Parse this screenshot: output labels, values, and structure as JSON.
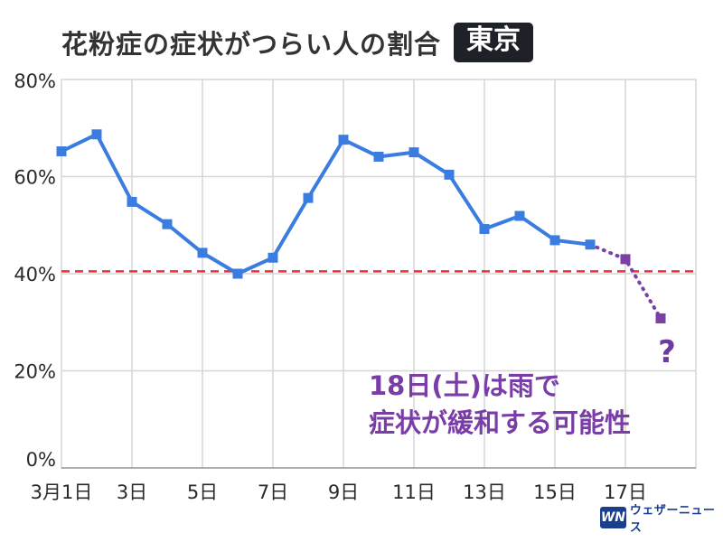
{
  "header": {
    "title": "花粉症の症状がつらい人の割合",
    "region": "東京"
  },
  "logo": {
    "mark": "WN",
    "text": "ウェザーニュース"
  },
  "colors": {
    "series": "#3a7ce0",
    "forecast": "#7b3fa6",
    "reference_line": "#e8313c",
    "grid": "#d6d6d6",
    "annotation": "#7a3da8"
  },
  "chart_data": {
    "type": "line",
    "title": "花粉症の症状がつらい人の割合",
    "xlabel": "",
    "ylabel": "",
    "ylim": [
      0,
      80
    ],
    "xlim": [
      1,
      19
    ],
    "grid": true,
    "y_ticks": [
      {
        "value": 0,
        "label": "0%"
      },
      {
        "value": 20,
        "label": "20%"
      },
      {
        "value": 40,
        "label": "40%"
      },
      {
        "value": 60,
        "label": "60%"
      },
      {
        "value": 80,
        "label": "80%"
      }
    ],
    "x_ticks": [
      {
        "value": 1,
        "label": "3月1日"
      },
      {
        "value": 3,
        "label": "3日"
      },
      {
        "value": 5,
        "label": "5日"
      },
      {
        "value": 7,
        "label": "7日"
      },
      {
        "value": 9,
        "label": "9日"
      },
      {
        "value": 11,
        "label": "11日"
      },
      {
        "value": 13,
        "label": "13日"
      },
      {
        "value": 15,
        "label": "15日"
      },
      {
        "value": 17,
        "label": "17日"
      }
    ],
    "series": [
      {
        "style": "solid",
        "color": "#3a7ce0",
        "x": [
          1,
          2,
          3,
          4,
          5,
          6,
          7,
          8,
          9,
          10,
          11,
          12,
          13,
          14,
          15,
          16
        ],
        "y": [
          65.2,
          68.7,
          54.8,
          50.2,
          44.3,
          40.0,
          43.3,
          55.6,
          67.6,
          64.1,
          65.0,
          60.4,
          49.2,
          51.9,
          46.9,
          46.0
        ]
      },
      {
        "style": "dotted",
        "color": "#7b3fa6",
        "x": [
          16,
          17,
          18
        ],
        "y": [
          46.0,
          43.0,
          30.8
        ]
      }
    ],
    "reference_line": {
      "y": 40.5,
      "style": "dashed",
      "color": "#e8313c"
    },
    "annotations": {
      "question": "?",
      "note_line1": "18日(土)は雨で",
      "note_line2": "症状が緩和する可能性"
    }
  }
}
